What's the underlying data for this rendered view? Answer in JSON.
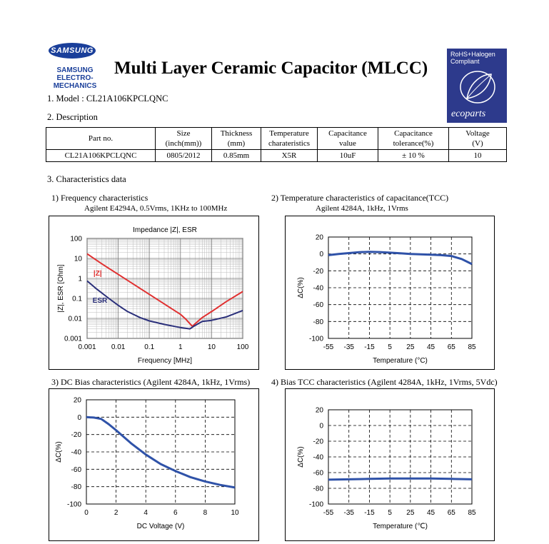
{
  "header": {
    "logo_mark": "SAMSUNG",
    "logo_line1": "SAMSUNG",
    "logo_line2": "ELECTRO-MECHANICS",
    "title": "Multi Layer Ceramic Capacitor (MLCC)",
    "eco_badge_line1": "RoHS+Halogen",
    "eco_badge_line2": "Compliant",
    "eco_brand": "ecoparts"
  },
  "sections": {
    "model": "1. Model : CL21A106KPCLQNC",
    "description": "2. Description",
    "characteristics": "3. Characteristics data"
  },
  "spec_table": {
    "headers": [
      [
        "Part no.",
        ""
      ],
      [
        "Size",
        "(inch(mm))"
      ],
      [
        "Thickness",
        "(mm)"
      ],
      [
        "Temperature",
        "charateristics"
      ],
      [
        "Capacitance",
        "value"
      ],
      [
        "Capacitance",
        "tolerance(%)"
      ],
      [
        "Voltage",
        "(V)"
      ]
    ],
    "row": [
      "CL21A106KPCLQNC",
      "0805/2012",
      "0.85mm",
      "X5R",
      "10uF",
      "± 10 %",
      "10"
    ]
  },
  "chart_data": [
    {
      "type": "line",
      "title": "1) Frequency characteristics",
      "subtitle": "Agilent E4294A, 0.5Vrms, 1KHz to 100MHz",
      "inner_title": "Impedance |Z|,  ESR",
      "xlabel": "Frequency [MHz]",
      "ylabel": "|Z|, ESR [Ohm]",
      "x_scale": "log",
      "y_scale": "log",
      "xlim": [
        0.001,
        100
      ],
      "ylim": [
        0.001,
        100
      ],
      "x_ticks": [
        "0.001",
        "0.01",
        "0.1",
        "1",
        "10",
        "100"
      ],
      "y_ticks": [
        "100",
        "10",
        "1",
        "0.1",
        "0.01",
        "0.001"
      ],
      "grid": true,
      "series": [
        {
          "name": "|Z|",
          "color": "#e03030",
          "x": [
            0.001,
            0.003,
            0.01,
            0.03,
            0.1,
            0.3,
            1,
            1.5,
            2,
            2.4,
            3,
            5,
            10,
            30,
            100
          ],
          "y": [
            17,
            5.3,
            1.6,
            0.53,
            0.16,
            0.053,
            0.016,
            0.009,
            0.0055,
            0.004,
            0.0055,
            0.011,
            0.022,
            0.07,
            0.22
          ]
        },
        {
          "name": "ESR",
          "color": "#2a2f7a",
          "x": [
            0.001,
            0.002,
            0.005,
            0.01,
            0.02,
            0.05,
            0.1,
            0.3,
            1,
            2,
            3,
            5,
            10,
            30,
            100
          ],
          "y": [
            0.75,
            0.3,
            0.1,
            0.045,
            0.022,
            0.011,
            0.0075,
            0.005,
            0.0035,
            0.003,
            0.0045,
            0.007,
            0.008,
            0.012,
            0.025
          ]
        }
      ]
    },
    {
      "type": "line",
      "title": "2) Temperature characteristics of capacitance(TCC)",
      "subtitle": "Agilent 4284A, 1kHz, 1Vrms",
      "xlabel": "Temperature (°C)",
      "ylabel": "ΔC(%)",
      "xlim": [
        -55,
        85
      ],
      "ylim": [
        -100,
        20
      ],
      "x_ticks": [
        "-55",
        "-35",
        "-15",
        "5",
        "25",
        "45",
        "65",
        "85"
      ],
      "y_ticks": [
        "20",
        "0",
        "-20",
        "-40",
        "-60",
        "-80",
        "-100"
      ],
      "grid": true,
      "series": [
        {
          "color": "#2f52a8",
          "x": [
            -55,
            -45,
            -35,
            -25,
            -15,
            -5,
            5,
            15,
            25,
            35,
            45,
            55,
            65,
            75,
            85
          ],
          "y": [
            -1.5,
            0,
            1,
            2,
            2.5,
            2.2,
            1.5,
            0.8,
            0,
            -0.5,
            -1,
            -1.5,
            -2.5,
            -6,
            -12
          ]
        }
      ]
    },
    {
      "type": "line",
      "title": "3) DC Bias characteristics (Agilent 4284A, 1kHz, 1Vrms)",
      "xlabel": "DC Voltage (V)",
      "ylabel": "ΔC(%)",
      "xlim": [
        0,
        10
      ],
      "ylim": [
        -100,
        20
      ],
      "x_ticks": [
        "0",
        "2",
        "4",
        "6",
        "8",
        "10"
      ],
      "y_ticks": [
        "20",
        "0",
        "-20",
        "-40",
        "-60",
        "-80",
        "-100"
      ],
      "grid": true,
      "series": [
        {
          "color": "#2f52a8",
          "x": [
            0,
            0.5,
            1,
            1.5,
            2,
            3,
            4,
            5,
            6,
            7,
            8,
            9,
            10
          ],
          "y": [
            0,
            -0.5,
            -2,
            -8,
            -15,
            -30,
            -43,
            -54,
            -62,
            -69,
            -74,
            -78,
            -81
          ]
        }
      ]
    },
    {
      "type": "line",
      "title": "4) Bias TCC characteristics (Agilent 4284A, 1kHz, 1Vrms, 5Vdc)",
      "xlabel": "Temperature (℃)",
      "ylabel": "ΔC(%)",
      "xlim": [
        -55,
        85
      ],
      "ylim": [
        -100,
        20
      ],
      "x_ticks": [
        "-55",
        "-35",
        "-15",
        "5",
        "25",
        "45",
        "65",
        "85"
      ],
      "y_ticks": [
        "20",
        "0",
        "-20",
        "-40",
        "-60",
        "-80",
        "-100"
      ],
      "grid": true,
      "series": [
        {
          "color": "#2f52a8",
          "x": [
            -55,
            -35,
            -15,
            5,
            25,
            45,
            65,
            85
          ],
          "y": [
            -69,
            -68.5,
            -68,
            -67.5,
            -67.5,
            -67.5,
            -68,
            -68.5
          ]
        }
      ]
    }
  ]
}
